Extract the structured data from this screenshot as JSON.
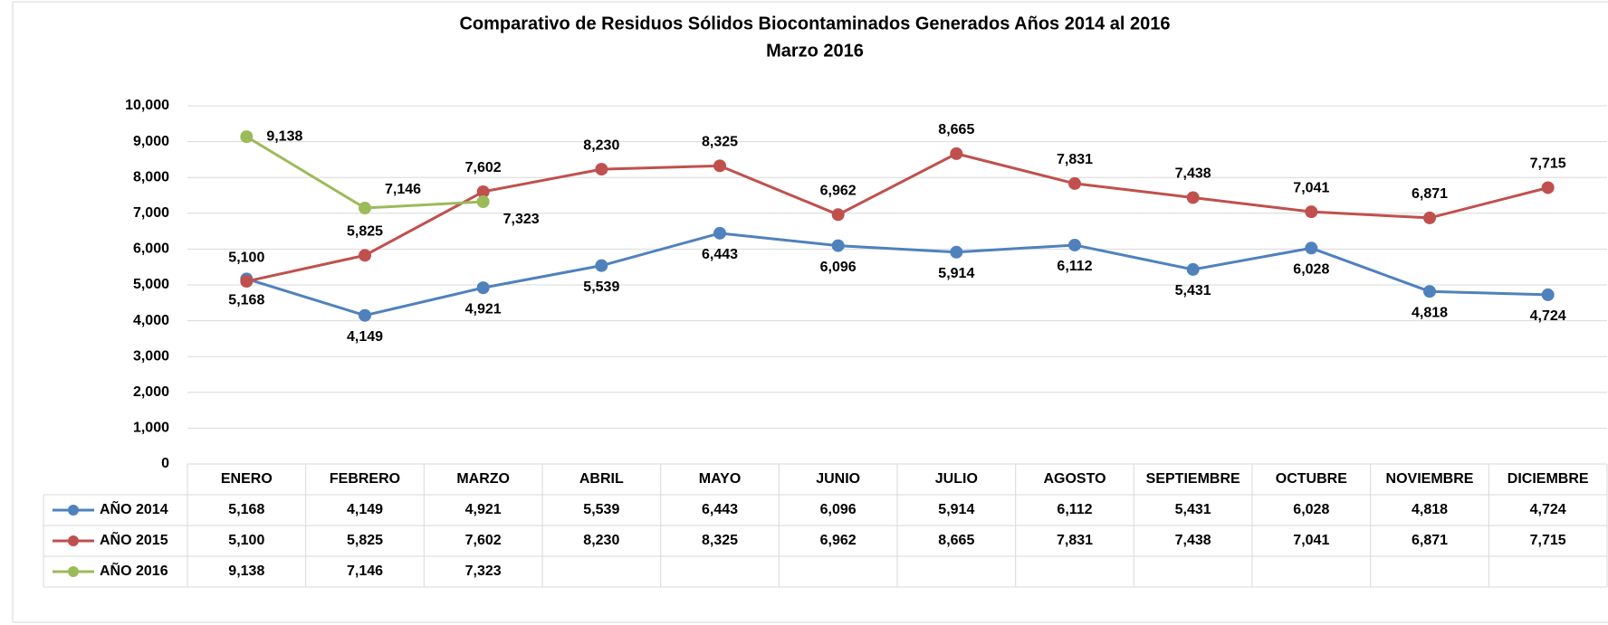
{
  "chart_data": {
    "type": "line",
    "title": "Comparativo de Residuos Sólidos Biocontaminados Generados Años 2014 al 2016",
    "subtitle": "Marzo 2016",
    "categories": [
      "ENERO",
      "FEBRERO",
      "MARZO",
      "ABRIL",
      "MAYO",
      "JUNIO",
      "JULIO",
      "AGOSTO",
      "SEPTIEMBRE",
      "OCTUBRE",
      "NOVIEMBRE",
      "DICIEMBRE"
    ],
    "series": [
      {
        "name": "AÑO 2014",
        "color": "#4f81bd",
        "values": [
          5168,
          4149,
          4921,
          5539,
          6443,
          6096,
          5914,
          6112,
          5431,
          6028,
          4818,
          4724
        ],
        "value_labels": [
          "5,168",
          "4,149",
          "4,921",
          "5,539",
          "6,443",
          "6,096",
          "5,914",
          "6,112",
          "5,431",
          "6,028",
          "4,818",
          "4,724"
        ]
      },
      {
        "name": "AÑO 2015",
        "color": "#c0504d",
        "values": [
          5100,
          5825,
          7602,
          8230,
          8325,
          6962,
          8665,
          7831,
          7438,
          7041,
          6871,
          7715
        ],
        "value_labels": [
          "5,100",
          "5,825",
          "7,602",
          "8,230",
          "8,325",
          "6,962",
          "8,665",
          "7,831",
          "7,438",
          "7,041",
          "6,871",
          "7,715"
        ]
      },
      {
        "name": "AÑO 2016",
        "color": "#9bbb59",
        "values": [
          9138,
          7146,
          7323,
          null,
          null,
          null,
          null,
          null,
          null,
          null,
          null,
          null
        ],
        "value_labels": [
          "9,138",
          "7,146",
          "7,323",
          null,
          null,
          null,
          null,
          null,
          null,
          null,
          null,
          null
        ]
      }
    ],
    "ylim": [
      0,
      10000
    ],
    "yticks": [
      0,
      {
        "value": 1000,
        "label": "1,000"
      },
      {
        "value": 2000,
        "label": "2,000"
      },
      {
        "value": 3000,
        "label": "3,000"
      },
      {
        "value": 4000,
        "label": "4,000"
      },
      {
        "value": 5000,
        "label": "5,000"
      },
      {
        "value": 6000,
        "label": "6,000"
      },
      {
        "value": 7000,
        "label": "7,000"
      },
      {
        "value": 8000,
        "label": "8,000"
      },
      {
        "value": 9000,
        "label": "9,000"
      },
      {
        "value": 10000,
        "label": "10,000"
      }
    ],
    "grid": true
  }
}
